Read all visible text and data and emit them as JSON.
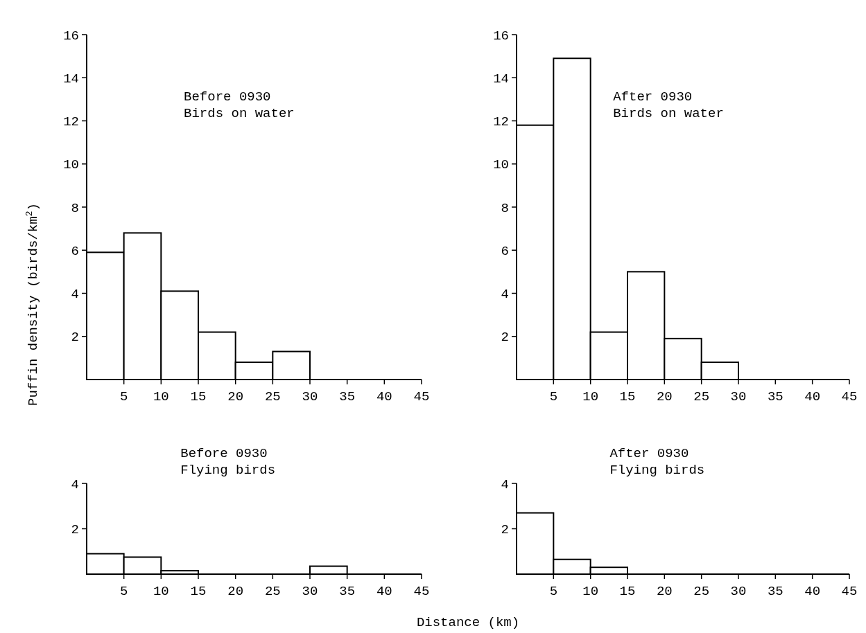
{
  "chart_data": [
    {
      "type": "histogram",
      "title": "Before 0930\nBirds on water",
      "ylabel": "Puffin density (birds/km$^{2}$)",
      "bins": [
        0,
        5,
        10,
        15,
        20,
        25,
        30,
        35,
        40,
        45
      ],
      "values": [
        5.9,
        6.8,
        4.1,
        2.2,
        0.8,
        1.3,
        0,
        0,
        0
      ],
      "color": "#000000",
      "xlim": [
        0,
        45
      ],
      "xticks": [
        5,
        10,
        15,
        20,
        25,
        30,
        35,
        40,
        45
      ],
      "ylim": [
        0,
        16
      ],
      "yticks": [
        2,
        4,
        6,
        8,
        10,
        12,
        14,
        16
      ]
    },
    {
      "type": "histogram",
      "title": "After 0930\nBirds on water",
      "bins": [
        0,
        5,
        10,
        15,
        20,
        25,
        30,
        35,
        40,
        45
      ],
      "values": [
        11.8,
        14.9,
        2.2,
        5.0,
        1.9,
        0.8,
        0,
        0,
        0
      ],
      "color": "#000000",
      "xlim": [
        0,
        45
      ],
      "xticks": [
        5,
        10,
        15,
        20,
        25,
        30,
        35,
        40,
        45
      ],
      "ylim": [
        0,
        16
      ],
      "yticks": [
        2,
        4,
        6,
        8,
        10,
        12,
        14,
        16
      ]
    },
    {
      "type": "histogram",
      "title": "Before 0930\nFlying birds",
      "xlabel": "Distance (km)",
      "bins": [
        0,
        5,
        10,
        15,
        20,
        25,
        30,
        35,
        40,
        45
      ],
      "values": [
        0.9,
        0.75,
        0.15,
        0,
        0,
        0,
        0.35,
        0,
        0
      ],
      "color": "#000000",
      "xlim": [
        0,
        45
      ],
      "xticks": [
        5,
        10,
        15,
        20,
        25,
        30,
        35,
        40,
        45
      ],
      "ylim": [
        0,
        4
      ],
      "yticks": [
        2,
        4
      ]
    },
    {
      "type": "histogram",
      "title": "After 0930\nFlying birds",
      "bins": [
        0,
        5,
        10,
        15,
        20,
        25,
        30,
        35,
        40,
        45
      ],
      "values": [
        2.7,
        0.65,
        0.3,
        0,
        0,
        0,
        0,
        0,
        0
      ],
      "color": "#000000",
      "xlim": [
        0,
        45
      ],
      "xticks": [
        5,
        10,
        15,
        20,
        25,
        30,
        35,
        40,
        45
      ],
      "ylim": [
        0,
        4
      ],
      "yticks": [
        2,
        4
      ]
    }
  ]
}
